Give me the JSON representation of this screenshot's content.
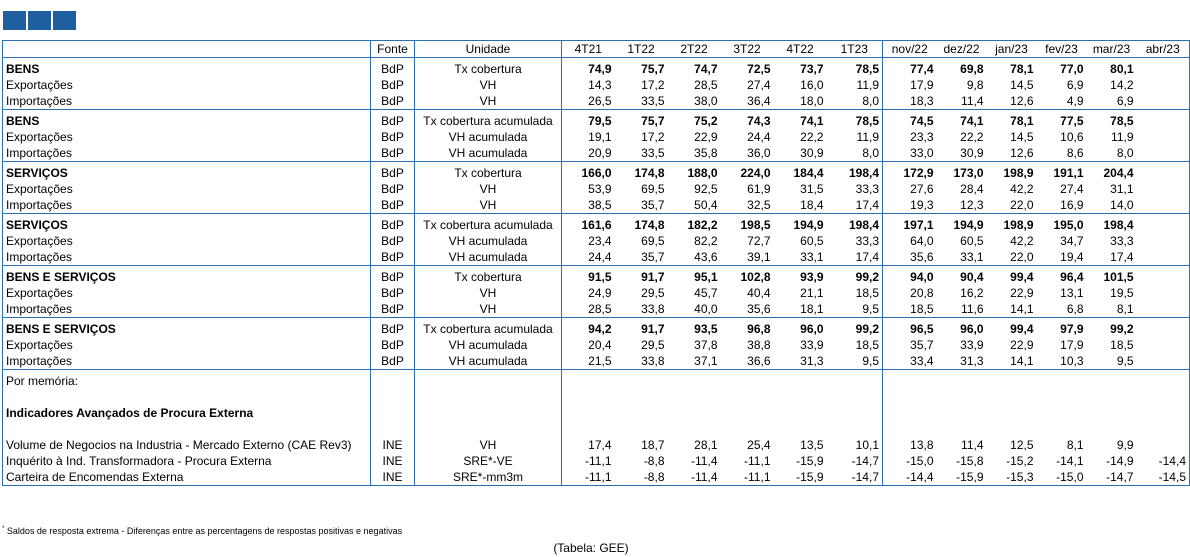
{
  "header": {
    "fonte": "Fonte",
    "unidade": "Unidade",
    "quarters": [
      "4T21",
      "1T22",
      "2T22",
      "3T22",
      "4T22",
      "1T23"
    ],
    "months": [
      "nov/22",
      "dez/22",
      "jan/23",
      "fev/23",
      "mar/23",
      "abr/23"
    ]
  },
  "groups": [
    {
      "rows": [
        {
          "label": "BENS",
          "bold": true,
          "fonte": "BdP",
          "unit": "Tx cobertura",
          "q": [
            "74,9",
            "75,7",
            "74,7",
            "72,5",
            "73,7",
            "78,5"
          ],
          "m": [
            "77,4",
            "69,8",
            "78,1",
            "77,0",
            "80,1",
            ""
          ]
        },
        {
          "label": "Exportações",
          "fonte": "BdP",
          "unit": "VH",
          "q": [
            "14,3",
            "17,2",
            "28,5",
            "27,4",
            "16,0",
            "11,9"
          ],
          "m": [
            "17,9",
            "9,8",
            "14,5",
            "6,9",
            "14,2",
            ""
          ]
        },
        {
          "label": "Importações",
          "fonte": "BdP",
          "unit": "VH",
          "q": [
            "26,5",
            "33,5",
            "38,0",
            "36,4",
            "18,0",
            "8,0"
          ],
          "m": [
            "18,3",
            "11,4",
            "12,6",
            "4,9",
            "6,9",
            ""
          ]
        }
      ]
    },
    {
      "rows": [
        {
          "label": "BENS",
          "bold": true,
          "fonte": "BdP",
          "unit": "Tx cobertura acumulada",
          "q": [
            "79,5",
            "75,7",
            "75,2",
            "74,3",
            "74,1",
            "78,5"
          ],
          "m": [
            "74,5",
            "74,1",
            "78,1",
            "77,5",
            "78,5",
            ""
          ]
        },
        {
          "label": "Exportações",
          "fonte": "BdP",
          "unit": "VH acumulada",
          "q": [
            "19,1",
            "17,2",
            "22,9",
            "24,4",
            "22,2",
            "11,9"
          ],
          "m": [
            "23,3",
            "22,2",
            "14,5",
            "10,6",
            "11,9",
            ""
          ]
        },
        {
          "label": "Importações",
          "fonte": "BdP",
          "unit": "VH acumulada",
          "q": [
            "20,9",
            "33,5",
            "35,8",
            "36,0",
            "30,9",
            "8,0"
          ],
          "m": [
            "33,0",
            "30,9",
            "12,6",
            "8,6",
            "8,0",
            ""
          ]
        }
      ]
    },
    {
      "rows": [
        {
          "label": "SERVIÇOS",
          "bold": true,
          "fonte": "BdP",
          "unit": "Tx cobertura",
          "q": [
            "166,0",
            "174,8",
            "188,0",
            "224,0",
            "184,4",
            "198,4"
          ],
          "m": [
            "172,9",
            "173,0",
            "198,9",
            "191,1",
            "204,4",
            ""
          ]
        },
        {
          "label": "Exportações",
          "fonte": "BdP",
          "unit": "VH",
          "q": [
            "53,9",
            "69,5",
            "92,5",
            "61,9",
            "31,5",
            "33,3"
          ],
          "m": [
            "27,6",
            "28,4",
            "42,2",
            "27,4",
            "31,1",
            ""
          ]
        },
        {
          "label": "Importações",
          "fonte": "BdP",
          "unit": "VH",
          "q": [
            "38,5",
            "35,7",
            "50,4",
            "32,5",
            "18,4",
            "17,4"
          ],
          "m": [
            "19,3",
            "12,3",
            "22,0",
            "16,9",
            "14,0",
            ""
          ]
        }
      ]
    },
    {
      "rows": [
        {
          "label": "SERVIÇOS",
          "bold": true,
          "fonte": "BdP",
          "unit": "Tx cobertura acumulada",
          "q": [
            "161,6",
            "174,8",
            "182,2",
            "198,5",
            "194,9",
            "198,4"
          ],
          "m": [
            "197,1",
            "194,9",
            "198,9",
            "195,0",
            "198,4",
            ""
          ]
        },
        {
          "label": "Exportações",
          "fonte": "BdP",
          "unit": "VH acumulada",
          "q": [
            "23,4",
            "69,5",
            "82,2",
            "72,7",
            "60,5",
            "33,3"
          ],
          "m": [
            "64,0",
            "60,5",
            "42,2",
            "34,7",
            "33,3",
            ""
          ]
        },
        {
          "label": "Importações",
          "fonte": "BdP",
          "unit": "VH acumulada",
          "q": [
            "24,4",
            "35,7",
            "43,6",
            "39,1",
            "33,1",
            "17,4"
          ],
          "m": [
            "35,6",
            "33,1",
            "22,0",
            "19,4",
            "17,4",
            ""
          ]
        }
      ]
    },
    {
      "rows": [
        {
          "label": "BENS E SERVIÇOS",
          "bold": true,
          "fonte": "BdP",
          "unit": "Tx cobertura",
          "q": [
            "91,5",
            "91,7",
            "95,1",
            "102,8",
            "93,9",
            "99,2"
          ],
          "m": [
            "94,0",
            "90,4",
            "99,4",
            "96,4",
            "101,5",
            ""
          ]
        },
        {
          "label": "Exportações",
          "fonte": "BdP",
          "unit": "VH",
          "q": [
            "24,9",
            "29,5",
            "45,7",
            "40,4",
            "21,1",
            "18,5"
          ],
          "m": [
            "20,8",
            "16,2",
            "22,9",
            "13,1",
            "19,5",
            ""
          ]
        },
        {
          "label": "Importações",
          "fonte": "BdP",
          "unit": "VH",
          "q": [
            "28,5",
            "33,8",
            "40,0",
            "35,6",
            "18,1",
            "9,5"
          ],
          "m": [
            "18,5",
            "11,6",
            "14,1",
            "6,8",
            "8,1",
            ""
          ]
        }
      ]
    },
    {
      "rows": [
        {
          "label": "BENS E SERVIÇOS",
          "bold": true,
          "fonte": "BdP",
          "unit": "Tx cobertura acumulada",
          "q": [
            "94,2",
            "91,7",
            "93,5",
            "96,8",
            "96,0",
            "99,2"
          ],
          "m": [
            "96,5",
            "96,0",
            "99,4",
            "97,9",
            "99,2",
            ""
          ]
        },
        {
          "label": "Exportações",
          "fonte": "BdP",
          "unit": "VH acumulada",
          "q": [
            "20,4",
            "29,5",
            "37,8",
            "38,8",
            "33,9",
            "18,5"
          ],
          "m": [
            "35,7",
            "33,9",
            "22,9",
            "17,9",
            "18,5",
            ""
          ]
        },
        {
          "label": "Importações",
          "fonte": "BdP",
          "unit": "VH acumulada",
          "q": [
            "21,5",
            "33,8",
            "37,1",
            "36,6",
            "31,3",
            "9,5"
          ],
          "m": [
            "33,4",
            "31,3",
            "14,1",
            "10,3",
            "9,5",
            ""
          ]
        }
      ]
    },
    {
      "rows": [
        {
          "label": "Por memória:",
          "fonte": "",
          "unit": "",
          "q": [
            "",
            "",
            "",
            "",
            "",
            ""
          ],
          "m": [
            "",
            "",
            "",
            "",
            "",
            ""
          ]
        },
        {
          "label": "",
          "fonte": "",
          "unit": "",
          "q": [
            "",
            "",
            "",
            "",
            "",
            ""
          ],
          "m": [
            "",
            "",
            "",
            "",
            "",
            ""
          ]
        },
        {
          "label": "Indicadores Avançados de Procura Externa",
          "bold": true,
          "fonte": "",
          "unit": "",
          "q": [
            "",
            "",
            "",
            "",
            "",
            ""
          ],
          "m": [
            "",
            "",
            "",
            "",
            "",
            ""
          ]
        },
        {
          "label": "",
          "fonte": "",
          "unit": "",
          "q": [
            "",
            "",
            "",
            "",
            "",
            ""
          ],
          "m": [
            "",
            "",
            "",
            "",
            "",
            ""
          ]
        },
        {
          "label": "Volume de Negocios na Industria - Mercado Externo (CAE Rev3)",
          "fonte": "INE",
          "unit": "VH",
          "q": [
            "17,4",
            "18,7",
            "28,1",
            "25,4",
            "13,5",
            "10,1"
          ],
          "m": [
            "13,8",
            "11,4",
            "12,5",
            "8,1",
            "9,9",
            ""
          ]
        },
        {
          "label": "Inquérito à Ind. Transformadora - Procura Externa",
          "fonte": "INE",
          "unit": "SRE*-VE",
          "q": [
            "-11,1",
            "-8,8",
            "-11,4",
            "-11,1",
            "-15,9",
            "-14,7"
          ],
          "m": [
            "-15,0",
            "-15,8",
            "-15,2",
            "-14,1",
            "-14,9",
            "-14,4"
          ]
        },
        {
          "label": "Carteira de Encomendas Externa",
          "fonte": "INE",
          "unit": "SRE*-mm3m",
          "q": [
            "-11,1",
            "-8,8",
            "-11,4",
            "-11,1",
            "-15,9",
            "-14,7"
          ],
          "m": [
            "-14,4",
            "-15,9",
            "-15,3",
            "-15,0",
            "-14,7",
            "-14,5"
          ]
        }
      ]
    }
  ],
  "footnote": "Saldos de resposta extrema - Diferenças entre as percentagens de respostas positivas e negativas",
  "footnote_mark": "*",
  "source": "(Tabela: GEE)"
}
